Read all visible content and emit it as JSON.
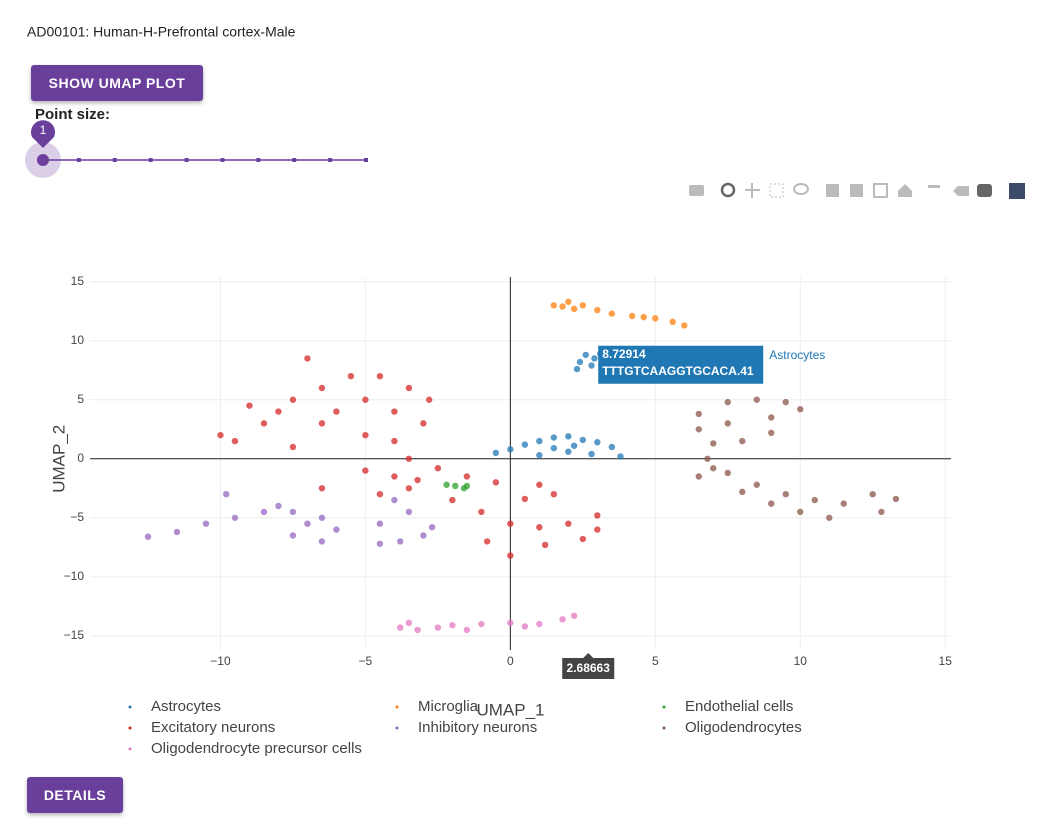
{
  "header": {
    "title": "AD00101: Human-H-Prefrontal cortex-Male"
  },
  "buttons": {
    "show_umap": "SHOW UMAP PLOT",
    "details": "DETAILS"
  },
  "point_size": {
    "label": "Point size:",
    "value": 1,
    "min": 1,
    "max": 10
  },
  "chart_data": {
    "type": "scatter",
    "xlabel": "UMAP_1",
    "ylabel": "UMAP_2",
    "xlim": [
      -14.5,
      15.2
    ],
    "ylim": [
      -16.2,
      15.4
    ],
    "xticks": [
      {
        "value": -10,
        "label": "−10"
      },
      {
        "value": -5,
        "label": "−5"
      },
      0,
      5,
      10,
      15
    ],
    "yticks": [
      15,
      10,
      5,
      0,
      {
        "value": -5,
        "label": "−5"
      },
      {
        "value": -10,
        "label": "−10"
      },
      {
        "value": -15,
        "label": "−15"
      }
    ],
    "grid": true,
    "series": [
      {
        "name": "Astrocytes",
        "color": "#1f77b4",
        "x": [
          -0.5,
          0,
          0.5,
          1,
          1.5,
          2,
          2.5,
          3,
          3.5,
          2.8,
          2,
          1.5,
          1,
          3.8,
          2.2,
          2.4,
          2.6,
          2.9,
          2.3,
          2.8,
          3.1
        ],
        "y": [
          0.5,
          0.8,
          1.2,
          1.5,
          1.8,
          1.9,
          1.6,
          1.4,
          1.0,
          0.4,
          0.6,
          0.9,
          0.3,
          0.2,
          1.1,
          8.2,
          8.8,
          8.5,
          7.6,
          7.9,
          8.9
        ]
      },
      {
        "name": "Microglia",
        "color": "#ff7f0e",
        "x": [
          1.5,
          2,
          2.5,
          3,
          2.2,
          3.5,
          4.2,
          5,
          5.6,
          6,
          1.8,
          4.6
        ],
        "y": [
          13,
          13.3,
          13,
          12.6,
          12.7,
          12.3,
          12.1,
          11.9,
          11.6,
          11.3,
          12.9,
          12
        ]
      },
      {
        "name": "Endothelial cells",
        "color": "#2ca02c",
        "x": [
          -2.2,
          -1.9,
          -1.6,
          -1.5
        ],
        "y": [
          -2.2,
          -2.3,
          -2.5,
          -2.3
        ]
      },
      {
        "name": "Excitatory neurons",
        "color": "#d62728",
        "x": [
          -9.5,
          -10,
          -8,
          -7.5,
          -6.5,
          -7,
          -5.5,
          -4.5,
          -3.5,
          -2.8,
          -3,
          -4,
          -5,
          -6,
          -6.5,
          -5,
          -4,
          -3.5,
          -5,
          -6.5,
          -4,
          -3.2,
          -2.5,
          -1.5,
          -0.5,
          1,
          1.5,
          -2,
          -1,
          0,
          1,
          2,
          3,
          2.5,
          1.2,
          0,
          -0.8,
          3,
          -8.5,
          -9,
          -7.5,
          -4.5,
          -3.5,
          0.5
        ],
        "y": [
          1.5,
          2,
          4,
          5,
          6,
          8.5,
          7,
          7,
          6,
          5,
          3,
          4,
          5,
          4,
          3,
          2,
          1.5,
          0,
          -1,
          -2.5,
          -1.5,
          -1.8,
          -0.8,
          -1.5,
          -2,
          -2.2,
          -3,
          -3.5,
          -4.5,
          -5.5,
          -5.8,
          -5.5,
          -6,
          -6.8,
          -7.3,
          -8.2,
          -7,
          -4.8,
          3,
          4.5,
          1,
          -3,
          -2.5,
          -3.4
        ]
      },
      {
        "name": "Inhibitory neurons",
        "color": "#9467bd",
        "x": [
          -12.5,
          -11.5,
          -10.5,
          -9.5,
          -8.5,
          -9.8,
          -8,
          -7.5,
          -7,
          -7.5,
          -6.5,
          -6,
          -6.5,
          -4.5,
          -3.8,
          -4.5,
          -3.5,
          -3,
          -4,
          -2.7
        ],
        "y": [
          -6.6,
          -6.2,
          -5.5,
          -5,
          -4.5,
          -3,
          -4,
          -4.5,
          -5.5,
          -6.5,
          -7,
          -6,
          -5,
          -7.2,
          -7,
          -5.5,
          -4.5,
          -6.5,
          -3.5,
          -5.8
        ]
      },
      {
        "name": "Oligodendrocytes",
        "color": "#8c564b",
        "x": [
          6.5,
          6.5,
          7.5,
          8.5,
          9.5,
          10,
          9,
          7.5,
          8,
          9,
          7,
          6.8,
          6.5,
          7.5,
          8.5,
          9.5,
          10.5,
          11.5,
          12.5,
          13.3,
          12.8,
          11,
          10,
          8,
          7,
          9
        ],
        "y": [
          2.5,
          3.8,
          4.8,
          5,
          4.8,
          4.2,
          3.5,
          3,
          1.5,
          2.2,
          1.3,
          0,
          -1.5,
          -1.2,
          -2.2,
          -3,
          -3.5,
          -3.8,
          -3,
          -3.4,
          -4.5,
          -5,
          -4.5,
          -2.8,
          -0.8,
          -3.8
        ]
      },
      {
        "name": "Oligodendrocyte precursor cells",
        "color": "#e377c2",
        "x": [
          -3.8,
          -3.2,
          -2.5,
          -2,
          -1.5,
          -1,
          0,
          1,
          1.8,
          2.2,
          -3.5,
          0.5
        ],
        "y": [
          -14.3,
          -14.5,
          -14.3,
          -14.1,
          -14.5,
          -14,
          -13.9,
          -14,
          -13.6,
          -13.3,
          -13.9,
          -14.2
        ]
      }
    ],
    "hover": {
      "x": 2.68663,
      "y": 8.72914,
      "cell": "TTTGTCAAGGTGCACA.41",
      "series": "Astrocytes"
    }
  }
}
